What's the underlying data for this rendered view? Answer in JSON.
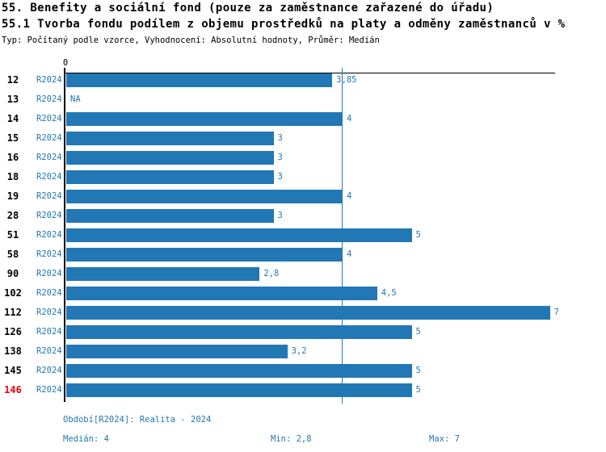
{
  "header": {
    "title_line1": "55. Benefity a sociální fond (pouze za zaměstnance zařazené do úřadu)",
    "title_line2": "55.1 Tvorba fondu podílem z objemu prostředků na platy a odměny zaměstnanců v %",
    "meta": "Typ: Počítaný podle vzorce, Vyhodnocení: Absolutní hodnoty, Průměr: Medián"
  },
  "chart_data": {
    "type": "bar",
    "orientation": "horizontal",
    "axis_zero_label": "0",
    "series_label": "R2024",
    "categories": [
      "12",
      "13",
      "14",
      "15",
      "16",
      "18",
      "19",
      "28",
      "51",
      "58",
      "90",
      "102",
      "112",
      "126",
      "138",
      "145",
      "146"
    ],
    "values": [
      3.85,
      null,
      4,
      3,
      3,
      3,
      4,
      3,
      5,
      4,
      2.8,
      4.5,
      7,
      5,
      3.2,
      5,
      5
    ],
    "value_labels": [
      "3,85",
      "NA",
      "4",
      "3",
      "3",
      "3",
      "4",
      "3",
      "5",
      "4",
      "2,8",
      "4,5",
      "7",
      "5",
      "3,2",
      "5",
      "5"
    ],
    "highlighted_category": "146",
    "median_line_value": 4,
    "xlim": [
      0,
      7.05
    ],
    "grid": false,
    "legend": "none",
    "bar_color": "#2277b5",
    "label_color": "#2277b5",
    "highlight_color": "#e8000b",
    "axis_color": "#000000"
  },
  "footer": {
    "period_label": "Období[R2024]: Realita - 2024",
    "median_label": "Medián: 4",
    "min_label": "Min: 2,8",
    "max_label": "Max: 7"
  }
}
